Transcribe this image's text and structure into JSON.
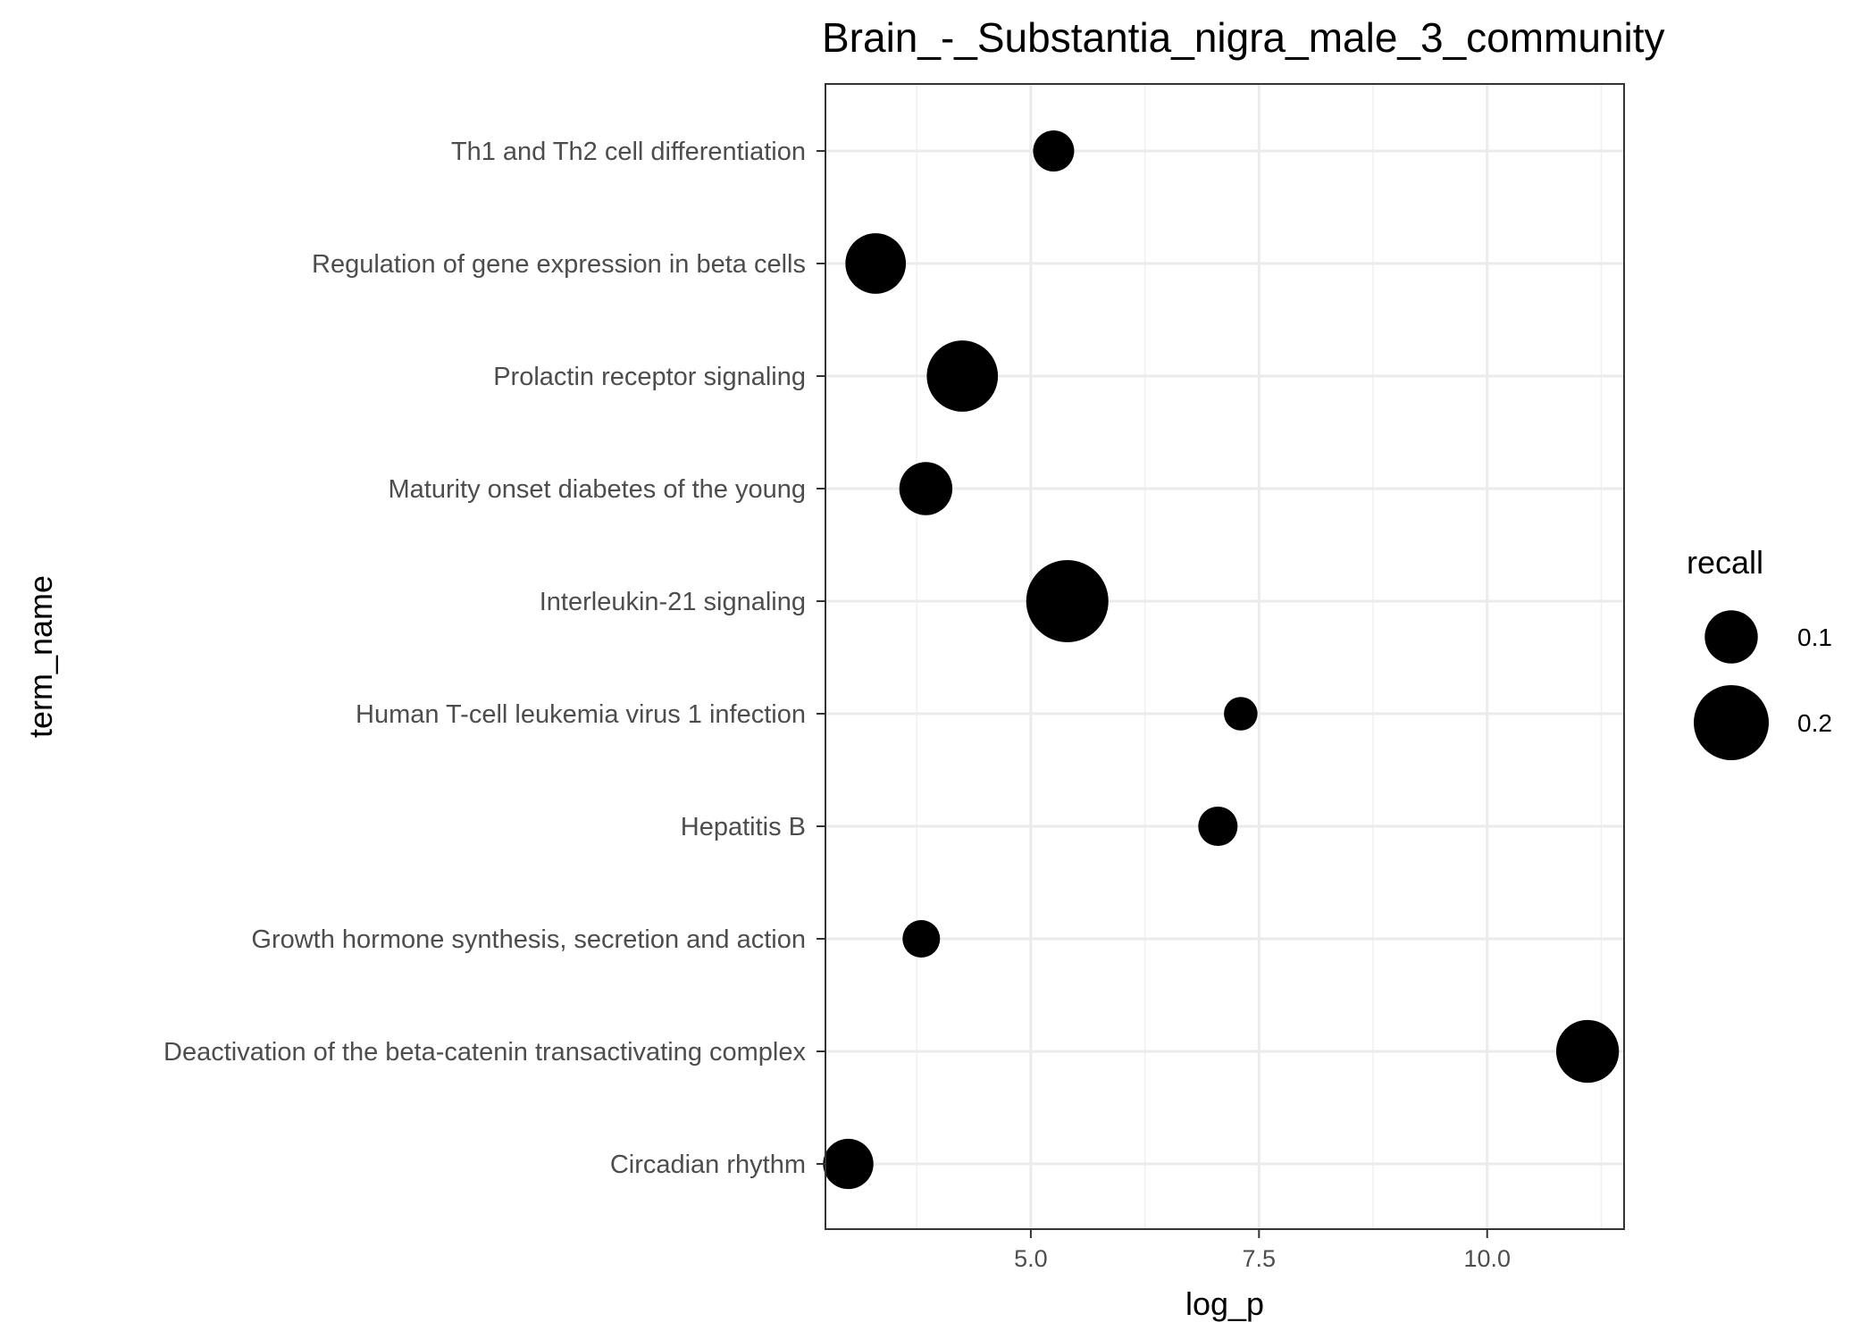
{
  "chart_data": {
    "type": "scatter",
    "title": "Brain_-_Substantia_nigra_male_3_community",
    "xlabel": "log_p",
    "ylabel": "term_name",
    "xlim": [
      2.75,
      11.5
    ],
    "x_ticks": [
      5.0,
      7.5,
      10.0
    ],
    "x_tick_labels": [
      "5.0",
      "7.5",
      "10.0"
    ],
    "grid": true,
    "categories": [
      "Th1 and Th2 cell differentiation",
      "Regulation of gene expression in beta cells",
      "Prolactin receptor signaling",
      "Maturity onset diabetes of the young",
      "Interleukin-21 signaling",
      "Human T-cell leukemia virus 1 infection",
      "Hepatitis B",
      "Growth hormone synthesis, secretion and action",
      "Deactivation of the beta-catenin transactivating complex",
      "Circadian rhythm"
    ],
    "points": [
      {
        "term": "Th1 and Th2 cell differentiation",
        "log_p": 5.25,
        "recall": 0.06
      },
      {
        "term": "Regulation of gene expression in beta cells",
        "log_p": 3.3,
        "recall": 0.13
      },
      {
        "term": "Prolactin receptor signaling",
        "log_p": 4.25,
        "recall": 0.18
      },
      {
        "term": "Maturity onset diabetes of the young",
        "log_p": 3.85,
        "recall": 0.1
      },
      {
        "term": "Interleukin-21 signaling",
        "log_p": 5.4,
        "recall": 0.24
      },
      {
        "term": "Human T-cell leukemia virus 1 infection",
        "log_p": 7.3,
        "recall": 0.04
      },
      {
        "term": "Hepatitis B",
        "log_p": 7.05,
        "recall": 0.055
      },
      {
        "term": "Growth hormone synthesis, secretion and action",
        "log_p": 3.8,
        "recall": 0.05
      },
      {
        "term": "Deactivation of the beta-catenin transactivating complex",
        "log_p": 11.1,
        "recall": 0.14
      },
      {
        "term": "Circadian rhythm",
        "log_p": 3.0,
        "recall": 0.09
      }
    ],
    "point_color": "#000000",
    "legend": {
      "title": "recall",
      "position": "right",
      "entries": [
        {
          "label": "0.1",
          "value": 0.1
        },
        {
          "label": "0.2",
          "value": 0.2
        }
      ]
    }
  }
}
